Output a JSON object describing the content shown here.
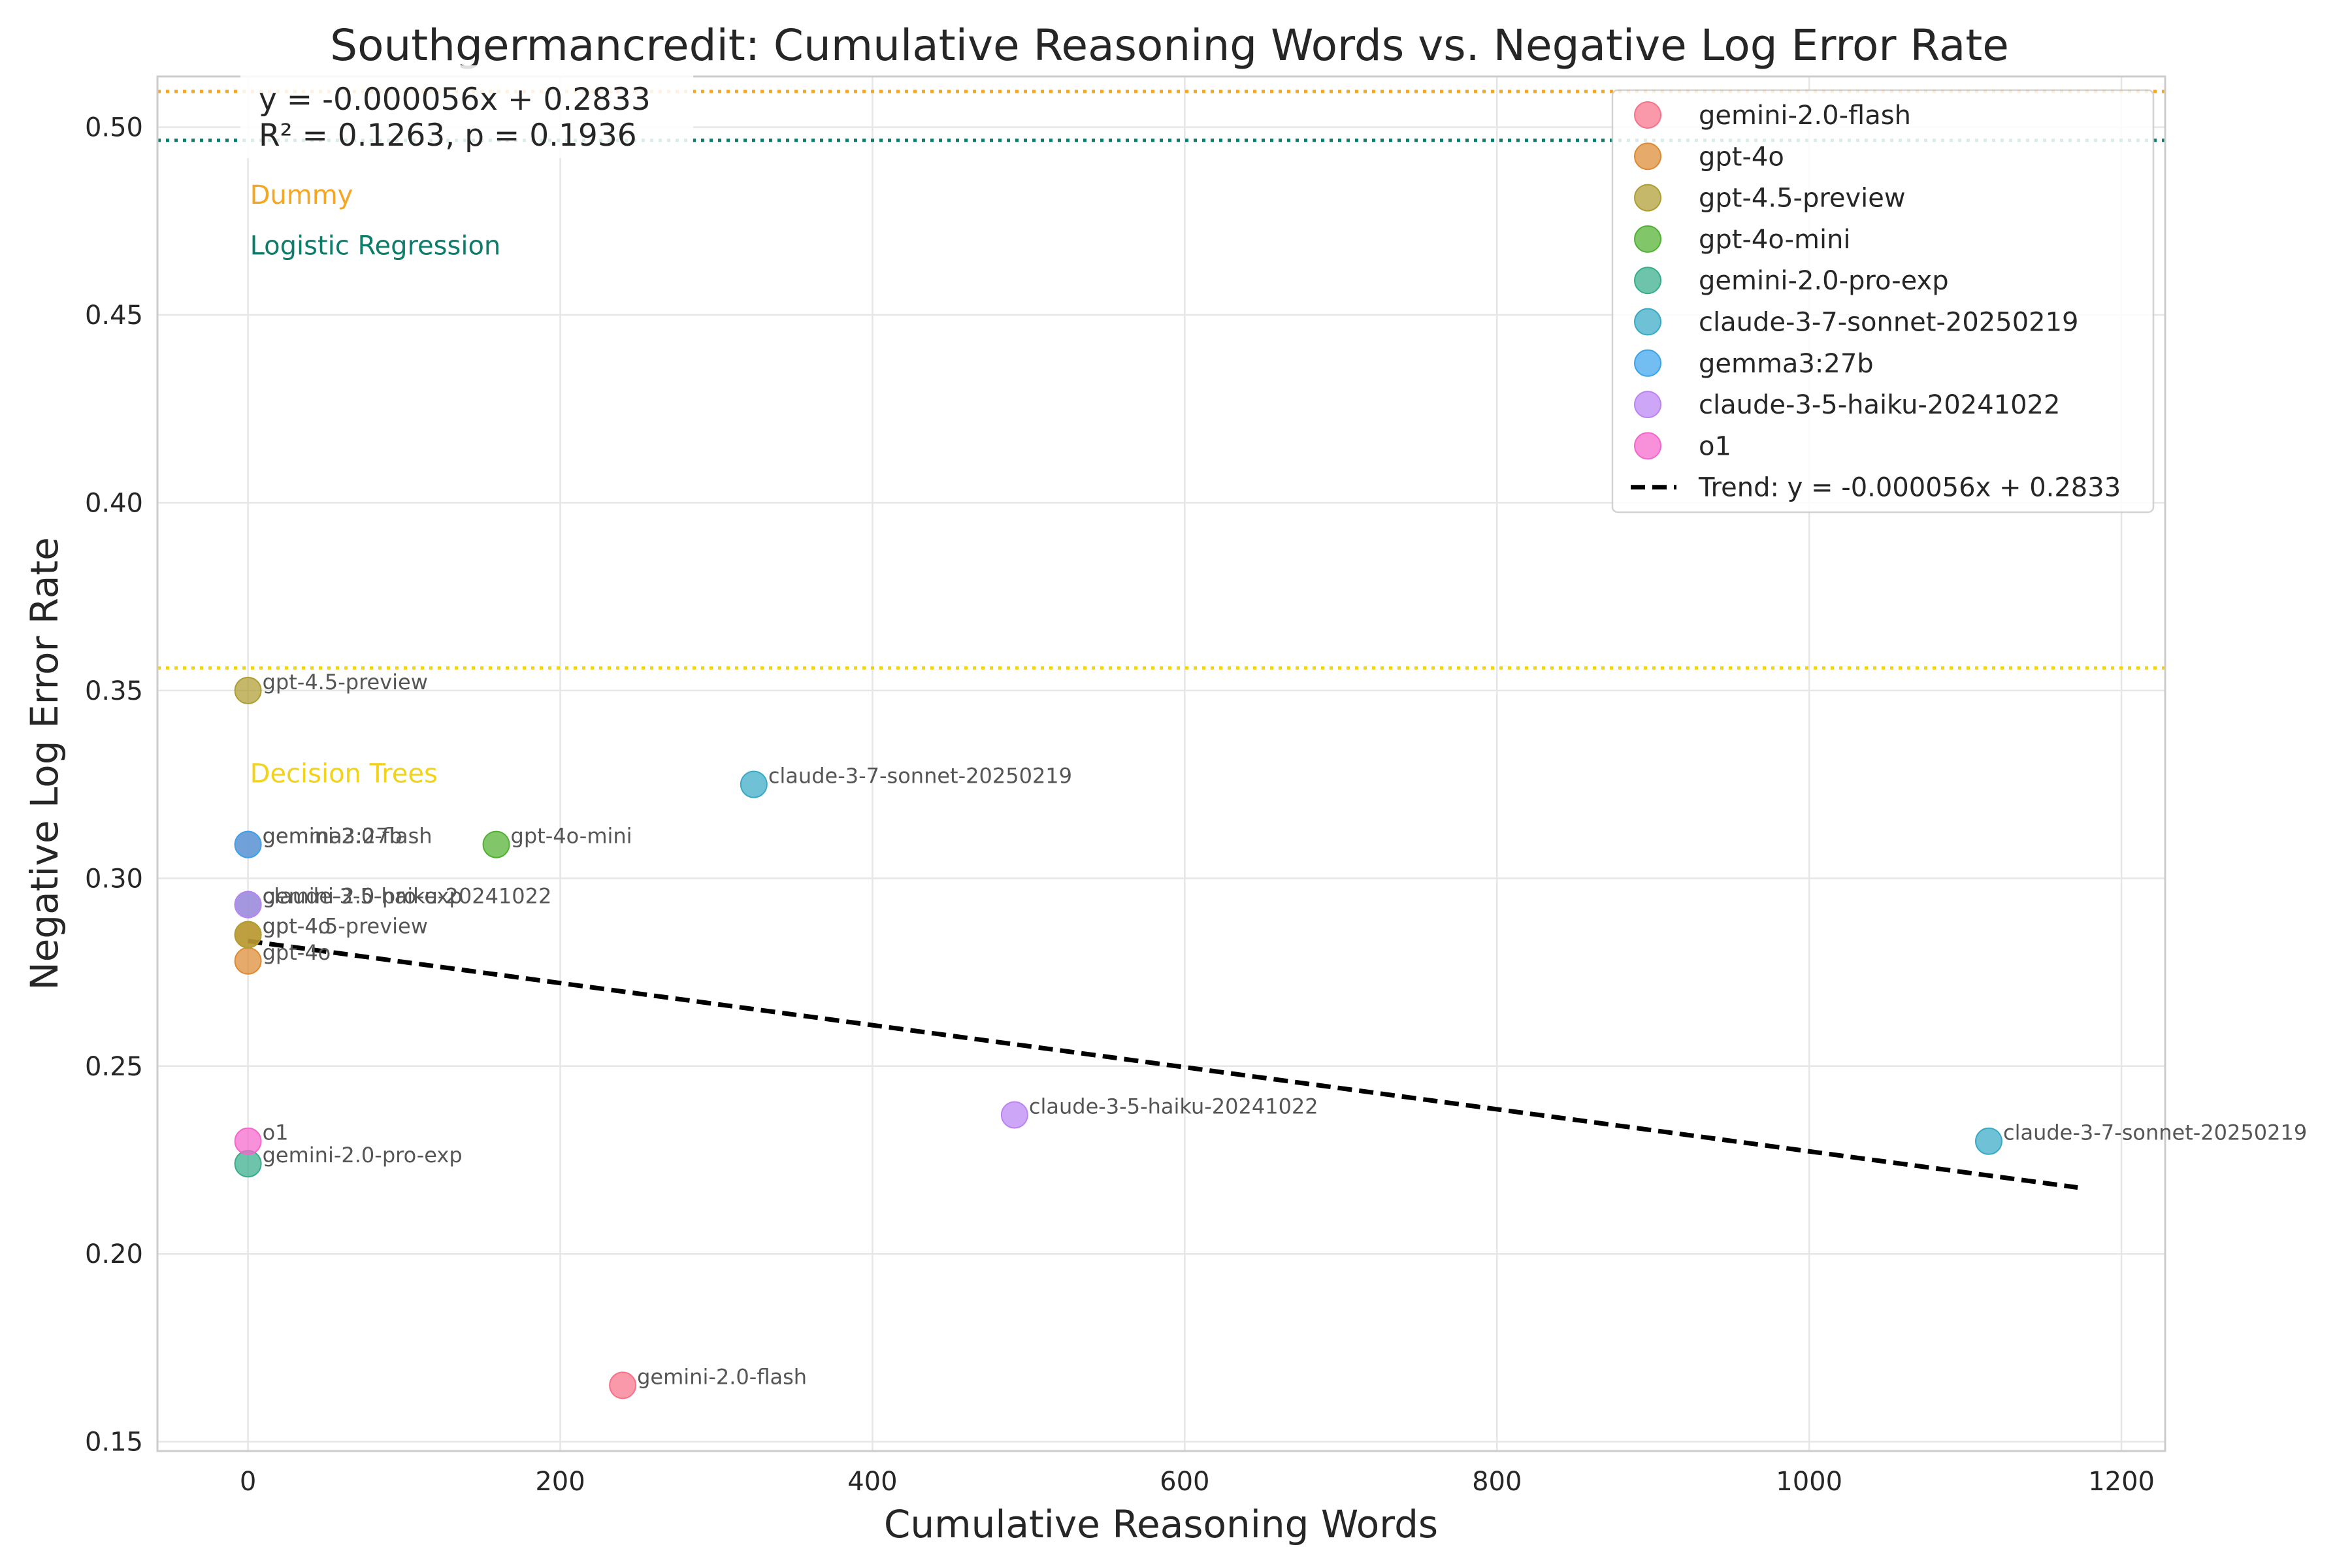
{
  "chart_data": {
    "type": "scatter",
    "title": "Southgermancredit: Cumulative Reasoning Words vs. Negative Log Error Rate",
    "xlabel": "Cumulative Reasoning Words",
    "ylabel": "Negative Log Error Rate",
    "xlim": [
      -58,
      1228
    ],
    "ylim": [
      0.1475,
      0.5135
    ],
    "xticks": [
      0,
      200,
      400,
      600,
      800,
      1000,
      1200
    ],
    "yticks": [
      0.15,
      0.2,
      0.25,
      0.3,
      0.35,
      0.4,
      0.45,
      0.5
    ],
    "grid": true,
    "legend_position": "top-right",
    "series": [
      {
        "name": "gemini-2.0-flash",
        "color": "#f77189",
        "points": [
          {
            "x": 240,
            "y": 0.165,
            "label": "gemini-2.0-flash"
          },
          {
            "x": 0,
            "y": 0.309,
            "label": "gemini-2.0-flash"
          }
        ]
      },
      {
        "name": "gpt-4o",
        "color": "#dc8932",
        "points": [
          {
            "x": 0,
            "y": 0.278,
            "label": "gpt-4o"
          },
          {
            "x": 0,
            "y": 0.285,
            "label": "gpt-4o"
          }
        ]
      },
      {
        "name": "gpt-4.5-preview",
        "color": "#ae9d31",
        "points": [
          {
            "x": 0,
            "y": 0.35,
            "label": "gpt-4.5-preview"
          },
          {
            "x": 0,
            "y": 0.285,
            "label": "gpt-4.5-preview"
          }
        ]
      },
      {
        "name": "gpt-4o-mini",
        "color": "#50b131",
        "points": [
          {
            "x": 159,
            "y": 0.309,
            "label": "gpt-4o-mini"
          }
        ]
      },
      {
        "name": "gemini-2.0-pro-exp",
        "color": "#36ad8a",
        "points": [
          {
            "x": 0,
            "y": 0.224,
            "label": "gemini-2.0-pro-exp"
          },
          {
            "x": 0,
            "y": 0.293,
            "label": "gemini-2.0-pro-exp"
          }
        ]
      },
      {
        "name": "claude-3-7-sonnet-20250219",
        "color": "#38a9c5",
        "points": [
          {
            "x": 324,
            "y": 0.325,
            "label": "claude-3-7-sonnet-20250219"
          },
          {
            "x": 1115,
            "y": 0.23,
            "label": "claude-3-7-sonnet-20250219"
          }
        ]
      },
      {
        "name": "gemma3:27b",
        "color": "#3ba3ec",
        "points": [
          {
            "x": 0,
            "y": 0.309,
            "label": "gemma3:27b"
          }
        ]
      },
      {
        "name": "claude-3-5-haiku-20241022",
        "color": "#bb83f4",
        "points": [
          {
            "x": 491,
            "y": 0.237,
            "label": "claude-3-5-haiku-20241022"
          },
          {
            "x": 0,
            "y": 0.293,
            "label": "claude-3-5-haiku-20241022"
          }
        ]
      },
      {
        "name": "o1",
        "color": "#f565cc",
        "points": [
          {
            "x": 0,
            "y": 0.23,
            "label": "o1"
          }
        ]
      }
    ],
    "trend": {
      "label": "Trend: y = -0.000056x + 0.2833",
      "slope": -5.6e-05,
      "intercept": 0.2833,
      "x_range": [
        0,
        1172
      ],
      "color": "#000000"
    },
    "stats_annotation": [
      "y = -0.000056x + 0.2833",
      "R² = 0.1263, p = 0.1936"
    ],
    "reference_lines": [
      {
        "label": "Dummy",
        "y": 0.5095,
        "color": "#f5a623",
        "label_y": 0.482
      },
      {
        "label": "Logistic Regression",
        "y": 0.4965,
        "color": "#0e7c6b",
        "label_y": 0.4685
      },
      {
        "label": "Decision Trees",
        "y": 0.356,
        "color": "#f2d21b",
        "label_y": 0.328
      }
    ]
  }
}
